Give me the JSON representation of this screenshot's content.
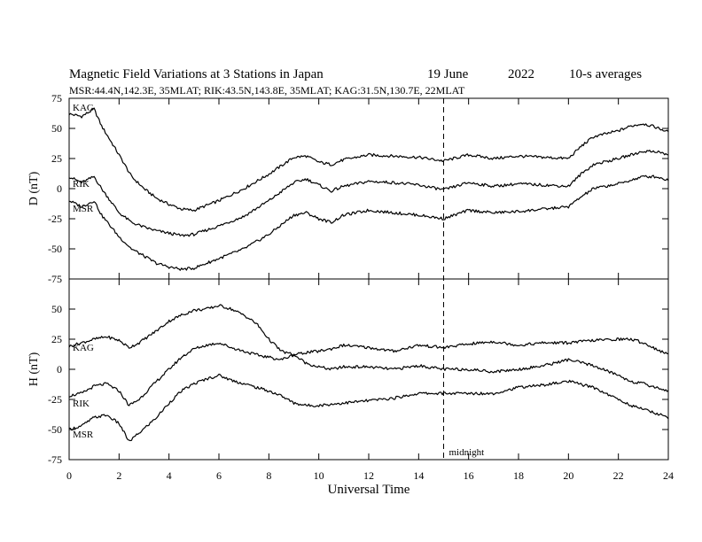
{
  "chart_data": {
    "type": "line",
    "title": "Magnetic Field Variations at 3 Stations in Japan",
    "date_label": "19 June",
    "year_label": "2022",
    "averaging_label": "10-s averages",
    "subtitle": "MSR:44.4N,142.3E, 35MLAT;  RIK:43.5N,143.8E, 35MLAT;  KAG:31.5N,130.7E, 22MLAT",
    "xlabel": "Universal Time",
    "xlim": [
      0,
      24
    ],
    "xticks": [
      0,
      2,
      4,
      6,
      8,
      10,
      12,
      14,
      16,
      18,
      20,
      22,
      24
    ],
    "annotation": {
      "label": "midnight",
      "x": 15
    },
    "panels": [
      {
        "ylabel": "D (nT)",
        "ylim": [
          -75,
          75
        ],
        "yticks": [
          75,
          50,
          25,
          0,
          -25,
          -50,
          -75
        ],
        "series": [
          {
            "name": "KAG",
            "x": [
              0,
              0.5,
              1,
              1.3,
              2,
              2.5,
              3,
              3.5,
              4,
              4.5,
              5,
              6,
              7,
              8,
              9,
              9.5,
              10,
              10.5,
              11,
              12,
              13,
              14,
              15,
              16,
              17,
              18,
              19,
              20,
              20.5,
              21,
              22,
              22.5,
              23,
              23.5,
              24
            ],
            "values": [
              62,
              60,
              66,
              52,
              28,
              10,
              0,
              -8,
              -13,
              -17,
              -18,
              -10,
              0,
              12,
              26,
              27,
              22,
              20,
              24,
              28,
              27,
              26,
              23,
              28,
              25,
              27,
              26,
              25,
              35,
              43,
              48,
              52,
              54,
              51,
              47
            ]
          },
          {
            "name": "RIK",
            "x": [
              0,
              0.5,
              1,
              1.3,
              2,
              2.5,
              3,
              3.5,
              4,
              4.5,
              5,
              6,
              7,
              8,
              9,
              9.5,
              10,
              10.5,
              11,
              12,
              13,
              14,
              15,
              16,
              17,
              18,
              19,
              20,
              20.5,
              21,
              22,
              22.5,
              23,
              23.5,
              24
            ],
            "values": [
              10,
              5,
              10,
              0,
              -20,
              -28,
              -32,
              -35,
              -37,
              -39,
              -38,
              -31,
              -23,
              -10,
              5,
              8,
              3,
              -2,
              2,
              6,
              5,
              3,
              -1,
              5,
              2,
              4,
              3,
              2,
              12,
              20,
              25,
              28,
              31,
              31,
              28
            ]
          },
          {
            "name": "MSR",
            "x": [
              0,
              0.5,
              1,
              1.3,
              2,
              2.5,
              3,
              3.5,
              4,
              4.5,
              5,
              6,
              7,
              8,
              9,
              9.5,
              10,
              10.5,
              11,
              12,
              13,
              14,
              15,
              16,
              17,
              18,
              19,
              20,
              20.5,
              21,
              22,
              22.5,
              23,
              23.5,
              24
            ],
            "values": [
              -10,
              -15,
              -10,
              -22,
              -40,
              -50,
              -56,
              -62,
              -65,
              -67,
              -66,
              -58,
              -50,
              -38,
              -22,
              -20,
              -25,
              -28,
              -22,
              -18,
              -20,
              -22,
              -25,
              -18,
              -20,
              -19,
              -17,
              -15,
              -7,
              0,
              4,
              7,
              10,
              10,
              7
            ]
          }
        ]
      },
      {
        "ylabel": "H (nT)",
        "ylim": [
          -75,
          75
        ],
        "yticks": [
          50,
          25,
          0,
          -25,
          -50,
          -75
        ],
        "series": [
          {
            "name": "KAG",
            "x": [
              0,
              0.5,
              1,
              1.5,
              2,
              2.4,
              2.8,
              3.5,
              4,
              4.5,
              5,
              5.5,
              6,
              6.5,
              7,
              7.5,
              8,
              8.5,
              9,
              9.5,
              10,
              10.5,
              11,
              12,
              13,
              14,
              15,
              16,
              17,
              18,
              19,
              20,
              21,
              22,
              22.5,
              23,
              24
            ],
            "values": [
              19,
              22,
              25,
              27,
              24,
              18,
              22,
              32,
              40,
              45,
              49,
              50,
              53,
              50,
              45,
              38,
              25,
              15,
              12,
              14,
              15,
              17,
              20,
              18,
              15,
              20,
              18,
              21,
              23,
              20,
              22,
              22,
              24,
              25,
              25,
              22,
              12
            ]
          },
          {
            "name": "RIK",
            "x": [
              0,
              0.5,
              1,
              1.5,
              2,
              2.4,
              2.8,
              3.5,
              4,
              4.5,
              5,
              5.5,
              6,
              6.5,
              7,
              7.5,
              8,
              8.5,
              9,
              9.5,
              10,
              10.5,
              11,
              12,
              13,
              14,
              15,
              16,
              17,
              18,
              19,
              20,
              21,
              22,
              22.5,
              23,
              24
            ],
            "values": [
              -22,
              -20,
              -14,
              -12,
              -18,
              -30,
              -25,
              -10,
              0,
              10,
              17,
              20,
              22,
              18,
              15,
              12,
              10,
              8,
              12,
              5,
              2,
              0,
              2,
              2,
              0,
              3,
              0,
              0,
              -2,
              0,
              3,
              8,
              3,
              -5,
              -10,
              -12,
              -18
            ]
          },
          {
            "name": "MSR",
            "x": [
              0,
              0.5,
              1,
              1.5,
              2,
              2.4,
              2.8,
              3.5,
              4,
              4.5,
              5,
              5.5,
              6,
              6.5,
              7,
              7.5,
              8,
              8.5,
              9,
              9.5,
              10,
              10.5,
              11,
              12,
              13,
              14,
              15,
              16,
              17,
              18,
              19,
              20,
              21,
              22,
              22.5,
              23,
              24
            ],
            "values": [
              -50,
              -47,
              -40,
              -38,
              -45,
              -60,
              -53,
              -40,
              -28,
              -18,
              -12,
              -8,
              -5,
              -9,
              -12,
              -15,
              -18,
              -22,
              -28,
              -30,
              -30,
              -29,
              -28,
              -26,
              -24,
              -20,
              -20,
              -20,
              -20,
              -15,
              -13,
              -10,
              -15,
              -25,
              -30,
              -33,
              -40
            ]
          }
        ]
      }
    ]
  }
}
